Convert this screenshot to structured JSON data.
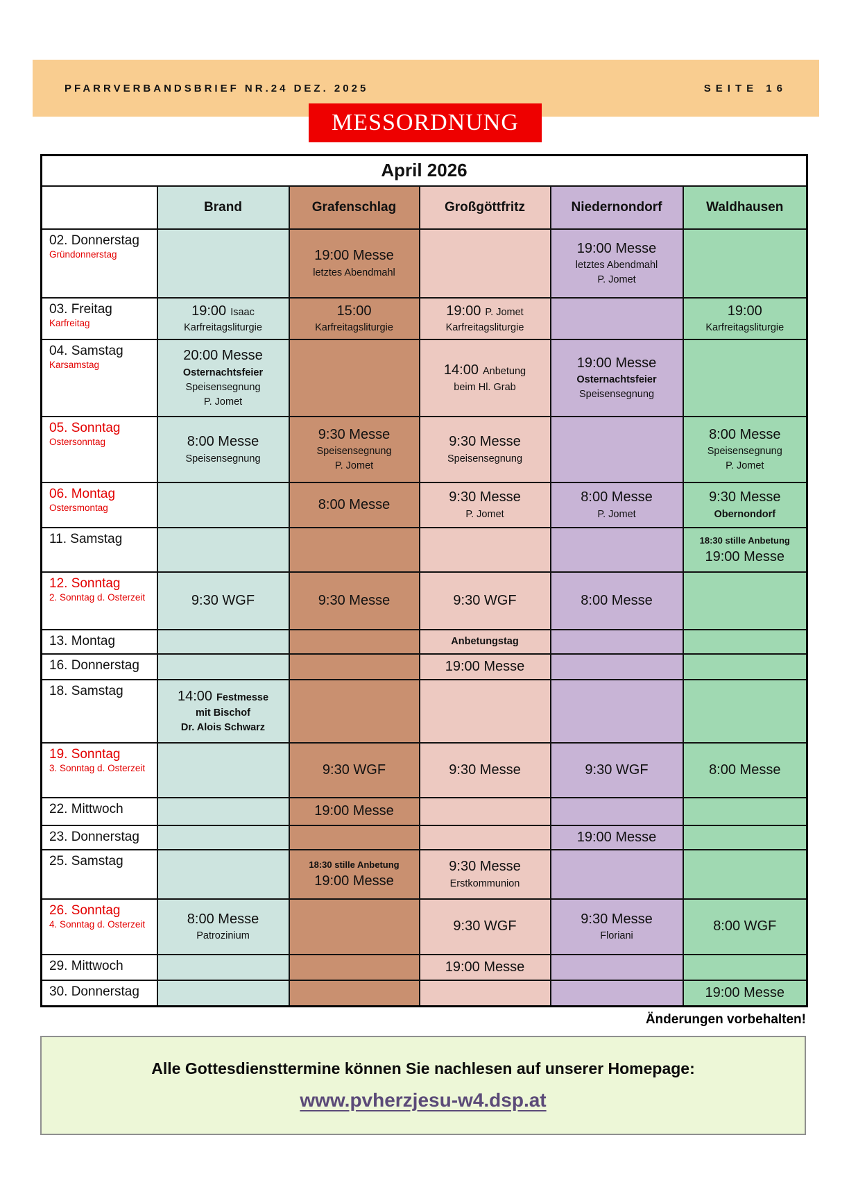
{
  "colors": {
    "topbar_bg": "#f9cd90",
    "banner_bg": "#ee0000",
    "accent_red": "#e30000",
    "footer_box_bg": "#edf7d7",
    "homepage_link": "#5b4a78"
  },
  "header": {
    "newsletter_title": "PFARRVERBANDSBRIEF NR.24 DEZ. 2025",
    "page_label": "SEITE 16",
    "banner": "MESSORDNUNG"
  },
  "table": {
    "title": "April 2026",
    "columns": [
      {
        "label": "Brand",
        "color": "#cde4df"
      },
      {
        "label": "Grafenschlag",
        "color": "#c99070"
      },
      {
        "label": "Großgöttfritz",
        "color": "#edc9c1"
      },
      {
        "label": "Niedernondorf",
        "color": "#c8b4d6"
      },
      {
        "label": "Waldhausen",
        "color": "#a0d9b2"
      }
    ],
    "rows": [
      {
        "day": "02. Donnerstag",
        "day_red": false,
        "feast": "Gründonnerstag",
        "cells": [
          [],
          [
            [
              {
                "t": "19:00 Messe",
                "c": "lg"
              }
            ],
            [
              {
                "t": "letztes Abendmahl",
                "c": "sm"
              }
            ]
          ],
          [],
          [
            [
              {
                "t": "19:00 Messe",
                "c": "lg"
              }
            ],
            [
              {
                "t": "letztes Abendmahl",
                "c": "sm"
              }
            ],
            [
              {
                "t": "P. Jomet",
                "c": "sm"
              }
            ]
          ],
          []
        ]
      },
      {
        "day": "03. Freitag",
        "day_red": false,
        "feast": "Karfreitag",
        "cells": [
          [
            [
              {
                "t": "19:00",
                "c": "lg"
              },
              {
                "t": "Isaac",
                "c": "sm"
              }
            ],
            [
              {
                "t": "Karfreitagsliturgie",
                "c": "sm"
              }
            ]
          ],
          [
            [
              {
                "t": "15:00",
                "c": "lg"
              }
            ],
            [
              {
                "t": "Karfreitagsliturgie",
                "c": "sm"
              }
            ]
          ],
          [
            [
              {
                "t": "19:00",
                "c": "lg"
              },
              {
                "t": "P. Jomet",
                "c": "sm"
              }
            ],
            [
              {
                "t": "Karfreitagsliturgie",
                "c": "sm"
              }
            ]
          ],
          [],
          [
            [
              {
                "t": "19:00",
                "c": "lg"
              }
            ],
            [
              {
                "t": "Karfreitagsliturgie",
                "c": "sm"
              }
            ]
          ]
        ]
      },
      {
        "day": "04. Samstag",
        "day_red": false,
        "feast": "Karsamstag",
        "cells": [
          [
            [
              {
                "t": "20:00 Messe",
                "c": "lg"
              }
            ],
            [
              {
                "t": "Osternachtsfeier",
                "c": "smb"
              }
            ],
            [
              {
                "t": "Speisensegnung",
                "c": "sm"
              }
            ],
            [
              {
                "t": "P. Jomet",
                "c": "sm"
              }
            ]
          ],
          [],
          [
            [
              {
                "t": "14:00",
                "c": "lg"
              },
              {
                "t": "Anbetung",
                "c": "sm"
              }
            ],
            [
              {
                "t": "beim Hl. Grab",
                "c": "sm"
              }
            ]
          ],
          [
            [
              {
                "t": "19:00 Messe",
                "c": "lg"
              }
            ],
            [
              {
                "t": "Osternachtsfeier",
                "c": "smb"
              }
            ],
            [
              {
                "t": "Speisensegnung",
                "c": "sm"
              }
            ]
          ],
          []
        ]
      },
      {
        "day": "05. Sonntag",
        "day_red": true,
        "feast": "Ostersonntag",
        "cells": [
          [
            [
              {
                "t": "8:00 Messe",
                "c": "lg"
              }
            ],
            [
              {
                "t": "Speisensegnung",
                "c": "sm"
              }
            ]
          ],
          [
            [
              {
                "t": "9:30 Messe",
                "c": "lg"
              }
            ],
            [
              {
                "t": "Speisensegnung",
                "c": "sm"
              }
            ],
            [
              {
                "t": "P. Jomet",
                "c": "sm"
              }
            ]
          ],
          [
            [
              {
                "t": "9:30 Messe",
                "c": "lg"
              }
            ],
            [
              {
                "t": "Speisensegnung",
                "c": "sm"
              }
            ]
          ],
          [],
          [
            [
              {
                "t": "8:00 Messe",
                "c": "lg"
              }
            ],
            [
              {
                "t": "Speisensegnung",
                "c": "sm"
              }
            ],
            [
              {
                "t": "P. Jomet",
                "c": "sm"
              }
            ]
          ]
        ]
      },
      {
        "day": "06. Montag",
        "day_red": true,
        "feast": "Ostersmontag",
        "cells": [
          [],
          [
            [
              {
                "t": "8:00 Messe",
                "c": "lg"
              }
            ]
          ],
          [
            [
              {
                "t": "9:30 Messe",
                "c": "lg"
              }
            ],
            [
              {
                "t": "P. Jomet",
                "c": "sm"
              }
            ]
          ],
          [
            [
              {
                "t": "8:00 Messe",
                "c": "lg"
              }
            ],
            [
              {
                "t": "P. Jomet",
                "c": "sm"
              }
            ]
          ],
          [
            [
              {
                "t": "9:30 Messe",
                "c": "lg"
              }
            ],
            [
              {
                "t": "Obernondorf",
                "c": "smb"
              }
            ]
          ]
        ]
      },
      {
        "day": "11. Samstag",
        "day_red": false,
        "feast": null,
        "cells": [
          [],
          [],
          [],
          [],
          [
            [
              {
                "t": "18:30 stille Anbetung",
                "c": "xsb"
              }
            ],
            [
              {
                "t": "19:00 Messe",
                "c": "lg"
              }
            ]
          ]
        ]
      },
      {
        "day": "12. Sonntag",
        "day_red": true,
        "feast": "2. Sonntag d. Osterzeit",
        "cells": [
          [
            [
              {
                "t": "9:30 WGF",
                "c": "lg"
              }
            ]
          ],
          [
            [
              {
                "t": "9:30 Messe",
                "c": "lg"
              }
            ]
          ],
          [
            [
              {
                "t": "9:30 WGF",
                "c": "lg"
              }
            ]
          ],
          [
            [
              {
                "t": "8:00 Messe",
                "c": "lg"
              }
            ]
          ],
          []
        ]
      },
      {
        "day": "13. Montag",
        "day_red": false,
        "feast": null,
        "cells": [
          [],
          [],
          [
            [
              {
                "t": "Anbetungstag",
                "c": "smb"
              }
            ]
          ],
          [],
          []
        ]
      },
      {
        "day": "16. Donnerstag",
        "day_red": false,
        "feast": null,
        "cells": [
          [],
          [],
          [
            [
              {
                "t": "19:00 Messe",
                "c": "lg"
              }
            ]
          ],
          [],
          []
        ]
      },
      {
        "day": "18. Samstag",
        "day_red": false,
        "feast": null,
        "cells": [
          [
            [
              {
                "t": "14:00",
                "c": "lg"
              },
              {
                "t": "Festmesse",
                "c": "smb"
              }
            ],
            [
              {
                "t": "mit Bischof",
                "c": "smb"
              }
            ],
            [
              {
                "t": "Dr. Alois Schwarz",
                "c": "smb"
              }
            ]
          ],
          [],
          [],
          [],
          []
        ]
      },
      {
        "day": "19. Sonntag",
        "day_red": true,
        "feast": "3. Sonntag d. Osterzeit",
        "cells": [
          [],
          [
            [
              {
                "t": "9:30 WGF",
                "c": "lg"
              }
            ]
          ],
          [
            [
              {
                "t": "9:30 Messe",
                "c": "lg"
              }
            ]
          ],
          [
            [
              {
                "t": "9:30 WGF",
                "c": "lg"
              }
            ]
          ],
          [
            [
              {
                "t": "8:00 Messe",
                "c": "lg"
              }
            ]
          ]
        ]
      },
      {
        "day": "22. Mittwoch",
        "day_red": false,
        "feast": null,
        "cells": [
          [],
          [
            [
              {
                "t": "19:00 Messe",
                "c": "lg"
              }
            ]
          ],
          [],
          [],
          []
        ]
      },
      {
        "day": "23. Donnerstag",
        "day_red": false,
        "feast": null,
        "cells": [
          [],
          [],
          [],
          [
            [
              {
                "t": "19:00 Messe",
                "c": "lg"
              }
            ]
          ],
          []
        ]
      },
      {
        "day": "25. Samstag",
        "day_red": false,
        "feast": null,
        "cells": [
          [],
          [
            [
              {
                "t": "18:30 stille Anbetung",
                "c": "xsb"
              }
            ],
            [
              {
                "t": "19:00 Messe",
                "c": "lg"
              }
            ]
          ],
          [
            [
              {
                "t": "9:30 Messe",
                "c": "lg"
              }
            ],
            [
              {
                "t": "Erstkommunion",
                "c": "sm"
              }
            ]
          ],
          [],
          []
        ]
      },
      {
        "day": "26. Sonntag",
        "day_red": true,
        "feast": "4. Sonntag d. Osterzeit",
        "cells": [
          [
            [
              {
                "t": "8:00 Messe",
                "c": "lg"
              }
            ],
            [
              {
                "t": "Patrozinium",
                "c": "sm"
              }
            ]
          ],
          [],
          [
            [
              {
                "t": "9:30 WGF",
                "c": "lg"
              }
            ]
          ],
          [
            [
              {
                "t": "9:30 Messe",
                "c": "lg"
              }
            ],
            [
              {
                "t": "Floriani",
                "c": "sm"
              }
            ]
          ],
          [
            [
              {
                "t": "8:00 WGF",
                "c": "lg"
              }
            ]
          ]
        ]
      },
      {
        "day": "29. Mittwoch",
        "day_red": false,
        "feast": null,
        "cells": [
          [],
          [],
          [
            [
              {
                "t": "19:00 Messe",
                "c": "lg"
              }
            ]
          ],
          [],
          []
        ]
      },
      {
        "day": "30. Donnerstag",
        "day_red": false,
        "feast": null,
        "cells": [
          [],
          [],
          [],
          [],
          [
            [
              {
                "t": "19:00 Messe",
                "c": "lg"
              }
            ]
          ]
        ]
      }
    ]
  },
  "footer": {
    "note": "Änderungen vorbehalten!",
    "homepage_text": "Alle Gottesdiensttermine können Sie nachlesen auf unserer Homepage:",
    "homepage_url": "www.pvherzjesu-w4.dsp.at"
  }
}
